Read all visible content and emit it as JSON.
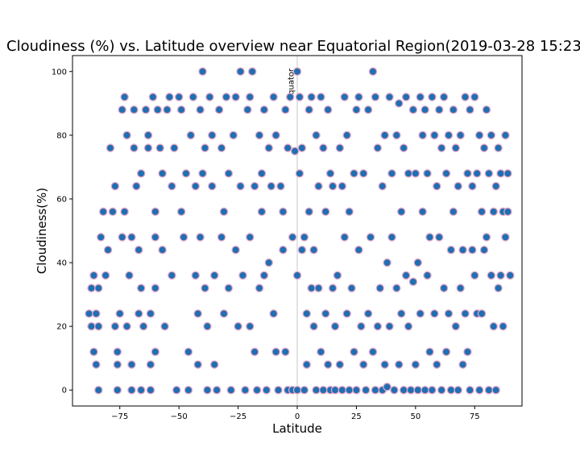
{
  "chart_data": {
    "type": "scatter",
    "title": "Cloudiness (%) vs. Latitude overview near Equatorial Region(2019-03-28 15:23",
    "xlabel": "Latitude",
    "ylabel": "Cloudiness(%)",
    "xlim": [
      -95,
      95
    ],
    "ylim": [
      -5,
      105
    ],
    "xticks": [
      -75,
      -50,
      -25,
      0,
      25,
      50,
      75
    ],
    "yticks": [
      0,
      20,
      40,
      60,
      80,
      100
    ],
    "grid": false,
    "annotation": {
      "text": "Equator",
      "x": 0
    },
    "series": [
      {
        "color": "#1f6fb2",
        "edge_color": "#e6a8c8",
        "points": [
          [
            -88,
            24
          ],
          [
            -87,
            32
          ],
          [
            -86,
            36
          ],
          [
            -87,
            20
          ],
          [
            -86,
            12
          ],
          [
            -85,
            8
          ],
          [
            -84,
            0
          ],
          [
            -85,
            24
          ],
          [
            -84,
            20
          ],
          [
            -84,
            32
          ],
          [
            -83,
            48
          ],
          [
            -82,
            56
          ],
          [
            -81,
            36
          ],
          [
            -80,
            44
          ],
          [
            -79,
            76
          ],
          [
            -78,
            56
          ],
          [
            -77,
            64
          ],
          [
            -77,
            20
          ],
          [
            -76,
            12
          ],
          [
            -76,
            8
          ],
          [
            -76,
            0
          ],
          [
            -75,
            24
          ],
          [
            -74,
            48
          ],
          [
            -74,
            88
          ],
          [
            -73,
            92
          ],
          [
            -73,
            56
          ],
          [
            -72,
            80
          ],
          [
            -72,
            20
          ],
          [
            -71,
            36
          ],
          [
            -70,
            48
          ],
          [
            -70,
            8
          ],
          [
            -70,
            0
          ],
          [
            -69,
            88
          ],
          [
            -69,
            76
          ],
          [
            -68,
            64
          ],
          [
            -67,
            44
          ],
          [
            -67,
            24
          ],
          [
            -66,
            68
          ],
          [
            -66,
            32
          ],
          [
            -66,
            0
          ],
          [
            -65,
            20
          ],
          [
            -64,
            88
          ],
          [
            -63,
            80
          ],
          [
            -63,
            76
          ],
          [
            -62,
            24
          ],
          [
            -62,
            8
          ],
          [
            -62,
            0
          ],
          [
            -61,
            92
          ],
          [
            -60,
            48
          ],
          [
            -60,
            56
          ],
          [
            -60,
            32
          ],
          [
            -60,
            12
          ],
          [
            -59,
            88
          ],
          [
            -58,
            76
          ],
          [
            -57,
            68
          ],
          [
            -57,
            44
          ],
          [
            -56,
            20
          ],
          [
            -55,
            88
          ],
          [
            -54,
            92
          ],
          [
            -53,
            64
          ],
          [
            -53,
            36
          ],
          [
            -52,
            76
          ],
          [
            -51,
            0
          ],
          [
            -50,
            92
          ],
          [
            -49,
            88
          ],
          [
            -49,
            56
          ],
          [
            -48,
            48
          ],
          [
            -47,
            68
          ],
          [
            -46,
            12
          ],
          [
            -46,
            0
          ],
          [
            -45,
            80
          ],
          [
            -44,
            92
          ],
          [
            -43,
            64
          ],
          [
            -43,
            36
          ],
          [
            -42,
            24
          ],
          [
            -42,
            8
          ],
          [
            -41,
            88
          ],
          [
            -41,
            48
          ],
          [
            -40,
            100
          ],
          [
            -40,
            68
          ],
          [
            -39,
            76
          ],
          [
            -39,
            32
          ],
          [
            -38,
            20
          ],
          [
            -38,
            0
          ],
          [
            -37,
            92
          ],
          [
            -36,
            80
          ],
          [
            -36,
            64
          ],
          [
            -35,
            36
          ],
          [
            -35,
            8
          ],
          [
            -34,
            0
          ],
          [
            -33,
            88
          ],
          [
            -32,
            76
          ],
          [
            -32,
            48
          ],
          [
            -31,
            56
          ],
          [
            -31,
            24
          ],
          [
            -30,
            92
          ],
          [
            -29,
            68
          ],
          [
            -29,
            32
          ],
          [
            -28,
            0
          ],
          [
            -27,
            80
          ],
          [
            -26,
            92
          ],
          [
            -26,
            44
          ],
          [
            -25,
            20
          ],
          [
            -24,
            100
          ],
          [
            -24,
            64
          ],
          [
            -23,
            36
          ],
          [
            -22,
            0
          ],
          [
            -21,
            88
          ],
          [
            -20,
            92
          ],
          [
            -20,
            48
          ],
          [
            -20,
            20
          ],
          [
            -19,
            100
          ],
          [
            -18,
            64
          ],
          [
            -18,
            12
          ],
          [
            -17,
            0
          ],
          [
            -16,
            80
          ],
          [
            -16,
            32
          ],
          [
            -15,
            68
          ],
          [
            -15,
            56
          ],
          [
            -14,
            88
          ],
          [
            -14,
            36
          ],
          [
            -13,
            0
          ],
          [
            -12,
            76
          ],
          [
            -12,
            40
          ],
          [
            -11,
            64
          ],
          [
            -10,
            92
          ],
          [
            -10,
            24
          ],
          [
            -9,
            80
          ],
          [
            -9,
            12
          ],
          [
            -8,
            0
          ],
          [
            -7,
            64
          ],
          [
            -6,
            56
          ],
          [
            -6,
            44
          ],
          [
            -5,
            88
          ],
          [
            -5,
            12
          ],
          [
            -4,
            0
          ],
          [
            -4,
            76
          ],
          [
            -3,
            92
          ],
          [
            -2,
            48
          ],
          [
            -2,
            0
          ],
          [
            -1,
            75
          ],
          [
            0,
            100
          ],
          [
            0,
            36
          ],
          [
            0,
            0
          ],
          [
            1,
            68
          ],
          [
            1,
            92
          ],
          [
            2,
            76
          ],
          [
            2,
            44
          ],
          [
            3,
            48
          ],
          [
            3,
            0
          ],
          [
            4,
            24
          ],
          [
            4,
            8
          ],
          [
            5,
            88
          ],
          [
            5,
            56
          ],
          [
            6,
            92
          ],
          [
            6,
            32
          ],
          [
            7,
            44
          ],
          [
            7,
            20
          ],
          [
            8,
            80
          ],
          [
            8,
            0
          ],
          [
            9,
            64
          ],
          [
            9,
            32
          ],
          [
            10,
            92
          ],
          [
            10,
            12
          ],
          [
            11,
            76
          ],
          [
            11,
            0
          ],
          [
            12,
            56
          ],
          [
            12,
            24
          ],
          [
            13,
            88
          ],
          [
            13,
            8
          ],
          [
            14,
            68
          ],
          [
            14,
            0
          ],
          [
            15,
            64
          ],
          [
            15,
            32
          ],
          [
            16,
            20
          ],
          [
            16,
            0
          ],
          [
            17,
            36
          ],
          [
            18,
            76
          ],
          [
            18,
            8
          ],
          [
            19,
            64
          ],
          [
            19,
            0
          ],
          [
            20,
            92
          ],
          [
            20,
            48
          ],
          [
            21,
            80
          ],
          [
            21,
            24
          ],
          [
            22,
            56
          ],
          [
            22,
            0
          ],
          [
            23,
            32
          ],
          [
            24,
            68
          ],
          [
            24,
            12
          ],
          [
            25,
            88
          ],
          [
            25,
            0
          ],
          [
            26,
            92
          ],
          [
            26,
            44
          ],
          [
            27,
            20
          ],
          [
            28,
            8
          ],
          [
            28,
            68
          ],
          [
            29,
            0
          ],
          [
            30,
            88
          ],
          [
            30,
            24
          ],
          [
            31,
            48
          ],
          [
            32,
            100
          ],
          [
            32,
            12
          ],
          [
            33,
            92
          ],
          [
            33,
            0
          ],
          [
            34,
            76
          ],
          [
            34,
            20
          ],
          [
            35,
            32
          ],
          [
            36,
            64
          ],
          [
            36,
            0
          ],
          [
            37,
            80
          ],
          [
            37,
            8
          ],
          [
            38,
            40
          ],
          [
            38,
            1
          ],
          [
            39,
            92
          ],
          [
            39,
            20
          ],
          [
            40,
            68
          ],
          [
            40,
            48
          ],
          [
            41,
            0
          ],
          [
            42,
            80
          ],
          [
            42,
            32
          ],
          [
            43,
            90
          ],
          [
            43,
            8
          ],
          [
            44,
            56
          ],
          [
            44,
            24
          ],
          [
            45,
            76
          ],
          [
            45,
            0
          ],
          [
            46,
            92
          ],
          [
            46,
            36
          ],
          [
            47,
            68
          ],
          [
            47,
            20
          ],
          [
            48,
            0
          ],
          [
            49,
            88
          ],
          [
            49,
            34
          ],
          [
            50,
            68
          ],
          [
            50,
            8
          ],
          [
            51,
            40
          ],
          [
            51,
            0
          ],
          [
            52,
            92
          ],
          [
            52,
            24
          ],
          [
            53,
            80
          ],
          [
            53,
            56
          ],
          [
            54,
            88
          ],
          [
            54,
            0
          ],
          [
            55,
            68
          ],
          [
            55,
            36
          ],
          [
            56,
            48
          ],
          [
            56,
            12
          ],
          [
            57,
            92
          ],
          [
            57,
            0
          ],
          [
            58,
            80
          ],
          [
            58,
            24
          ],
          [
            59,
            64
          ],
          [
            59,
            8
          ],
          [
            60,
            88
          ],
          [
            60,
            48
          ],
          [
            61,
            76
          ],
          [
            61,
            0
          ],
          [
            62,
            92
          ],
          [
            62,
            32
          ],
          [
            63,
            68
          ],
          [
            63,
            12
          ],
          [
            64,
            80
          ],
          [
            64,
            24
          ],
          [
            65,
            44
          ],
          [
            65,
            0
          ],
          [
            66,
            88
          ],
          [
            66,
            56
          ],
          [
            67,
            76
          ],
          [
            67,
            20
          ],
          [
            68,
            64
          ],
          [
            68,
            0
          ],
          [
            69,
            80
          ],
          [
            69,
            32
          ],
          [
            70,
            44
          ],
          [
            70,
            8
          ],
          [
            71,
            92
          ],
          [
            71,
            24
          ],
          [
            72,
            68
          ],
          [
            72,
            12
          ],
          [
            73,
            88
          ],
          [
            73,
            0
          ],
          [
            74,
            64
          ],
          [
            74,
            44
          ],
          [
            75,
            92
          ],
          [
            75,
            36
          ],
          [
            76,
            68
          ],
          [
            76,
            24
          ],
          [
            77,
            80
          ],
          [
            77,
            0
          ],
          [
            78,
            56
          ],
          [
            78,
            24
          ],
          [
            79,
            76
          ],
          [
            79,
            44
          ],
          [
            80,
            88
          ],
          [
            80,
            48
          ],
          [
            81,
            68
          ],
          [
            81,
            0
          ],
          [
            82,
            80
          ],
          [
            82,
            36
          ],
          [
            83,
            56
          ],
          [
            83,
            20
          ],
          [
            84,
            64
          ],
          [
            84,
            0
          ],
          [
            85,
            76
          ],
          [
            85,
            32
          ],
          [
            86,
            68
          ],
          [
            86,
            36
          ],
          [
            87,
            56
          ],
          [
            87,
            20
          ],
          [
            88,
            80
          ],
          [
            88,
            48
          ],
          [
            89,
            68
          ],
          [
            89,
            56
          ],
          [
            90,
            36
          ]
        ]
      }
    ]
  }
}
